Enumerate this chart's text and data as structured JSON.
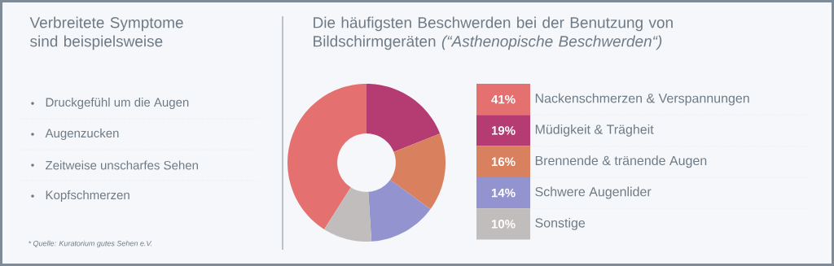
{
  "chart_data": [
    {
      "type": "other",
      "title": "Verbreitete Symptome sind beispielsweise",
      "annotations": [
        "Druckgefühl um die Augen",
        "Augenzucken",
        "Zeitweise unscharfes Sehen",
        "Kopfschmerzen",
        "* Quelle: Kuratorium gutes Sehen e.V."
      ]
    },
    {
      "type": "donut",
      "title": "Die häufigsten Beschwerden bei der Benutzung von Bildschirmgeräten *(“Asthenopische Beschwerden“)*",
      "categories": [
        "Nackenschmerzen & Verspannungen",
        "Müdigkeit & Trägheit",
        "Brennende & tränende Augen",
        "Schwere Augenlider",
        "Sonstige"
      ],
      "values": [
        41,
        19,
        16,
        14,
        10
      ],
      "value_labels": [
        "41%",
        "19%",
        "16%",
        "14%",
        "10%"
      ],
      "colors": [
        "#e57070",
        "#b53c72",
        "#d9805e",
        "#9394cf",
        "#c1bdbd"
      ],
      "legend": "right"
    }
  ]
}
